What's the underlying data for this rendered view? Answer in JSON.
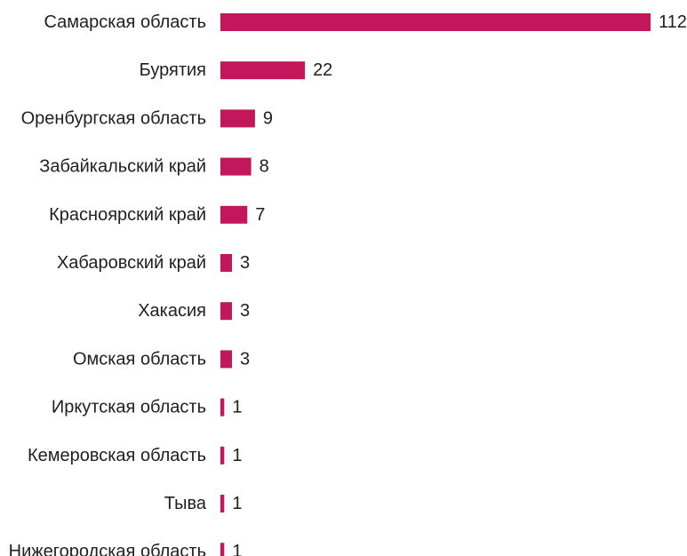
{
  "chart_data": {
    "type": "bar",
    "orientation": "horizontal",
    "categories": [
      "Самарская область",
      "Бурятия",
      "Оренбургская область",
      "Забайкальский край",
      "Красноярский край",
      "Хабаровский край",
      "Хакасия",
      "Омская область",
      "Иркутская область",
      "Кемеровская область",
      "Тыва",
      "Нижегородская область"
    ],
    "values": [
      112,
      22,
      9,
      8,
      7,
      3,
      3,
      3,
      1,
      1,
      1,
      1
    ],
    "data_labels": [
      "112",
      "22",
      "9",
      "8",
      "7",
      "3",
      "3",
      "3",
      "1",
      "1",
      "1",
      "1"
    ],
    "title": "",
    "xlabel": "",
    "ylabel": "",
    "xlim": [
      0,
      112
    ],
    "grid": false,
    "legend": "none",
    "bar_color": "#c2185b"
  }
}
